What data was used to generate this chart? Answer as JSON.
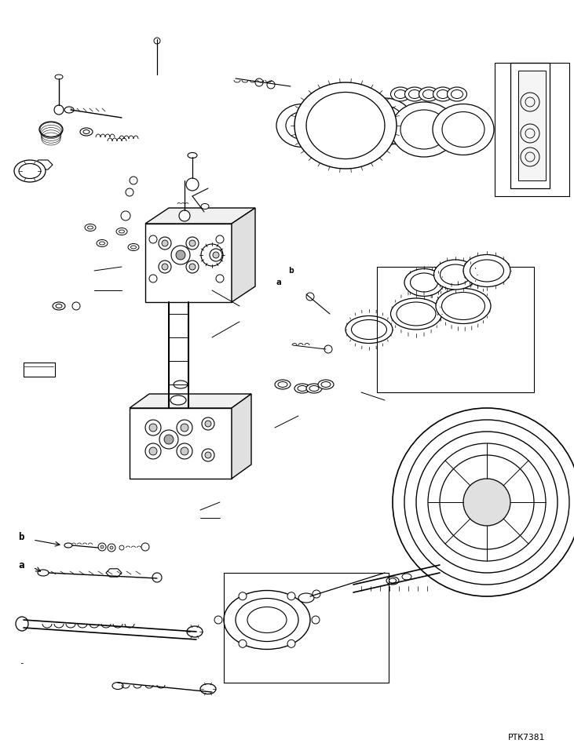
{
  "background_color": "#ffffff",
  "line_color": "#000000",
  "text_color": "#000000",
  "part_id": "PTK7381",
  "label_a": "a",
  "label_b": "b",
  "figsize": [
    7.31,
    9.52
  ],
  "dpi": 100,
  "border_color": "#000000"
}
